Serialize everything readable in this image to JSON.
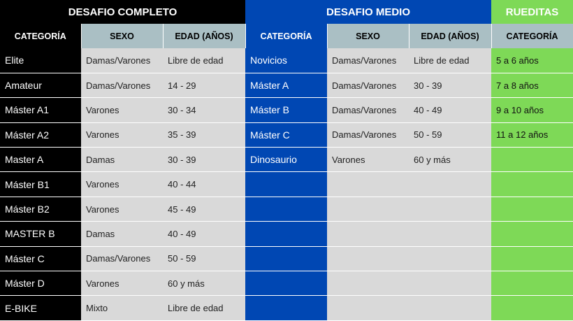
{
  "groups": {
    "completo": "DESAFIO COMPLETO",
    "medio": "DESAFIO MEDIO",
    "rueditas": "RUEDITAS"
  },
  "headers": {
    "categoria": "CATEGORÍA",
    "sexo": "SEXO",
    "edad": "EDAD (AÑOS)"
  },
  "rows": [
    {
      "c_cat": "Elite",
      "c_sexo": "Damas/Varones",
      "c_edad": "Libre de edad",
      "m_cat": "Novicios",
      "m_sexo": "Damas/Varones",
      "m_edad": "Libre de edad",
      "r_cat": "5 a 6 años"
    },
    {
      "c_cat": "Amateur",
      "c_sexo": "Damas/Varones",
      "c_edad": "14 - 29",
      "m_cat": "Máster A",
      "m_sexo": "Damas/Varones",
      "m_edad": "30 - 39",
      "r_cat": "7 a 8 años"
    },
    {
      "c_cat": "Máster A1",
      "c_sexo": "Varones",
      "c_edad": "30 - 34",
      "m_cat": "Máster B",
      "m_sexo": "Damas/Varones",
      "m_edad": "40 - 49",
      "r_cat": "9 a 10 años"
    },
    {
      "c_cat": "Máster A2",
      "c_sexo": "Varones",
      "c_edad": "35 - 39",
      "m_cat": "Máster C",
      "m_sexo": "Damas/Varones",
      "m_edad": "50 - 59",
      "r_cat": "11 a 12 años"
    },
    {
      "c_cat": "Master A",
      "c_sexo": "Damas",
      "c_edad": "30 - 39",
      "m_cat": "Dinosaurio",
      "m_sexo": "Varones",
      "m_edad": "60 y más",
      "r_cat": ""
    },
    {
      "c_cat": "Máster B1",
      "c_sexo": "Varones",
      "c_edad": "40 - 44",
      "m_cat": "",
      "m_sexo": "",
      "m_edad": "",
      "r_cat": ""
    },
    {
      "c_cat": "Máster B2",
      "c_sexo": "Varones",
      "c_edad": "45 - 49",
      "m_cat": "",
      "m_sexo": "",
      "m_edad": "",
      "r_cat": ""
    },
    {
      "c_cat": "MASTER B",
      "c_sexo": "Damas",
      "c_edad": "40 - 49",
      "m_cat": "",
      "m_sexo": "",
      "m_edad": "",
      "r_cat": ""
    },
    {
      "c_cat": "Máster C",
      "c_sexo": "Damas/Varones",
      "c_edad": "50 - 59",
      "m_cat": "",
      "m_sexo": "",
      "m_edad": "",
      "r_cat": ""
    },
    {
      "c_cat": "Máster D",
      "c_sexo": "Varones",
      "c_edad": "60 y más",
      "m_cat": "",
      "m_sexo": "",
      "m_edad": "",
      "r_cat": ""
    },
    {
      "c_cat": "E-BIKE",
      "c_sexo": "Mixto",
      "c_edad": "Libre de edad",
      "m_cat": "",
      "m_sexo": "",
      "m_edad": "",
      "r_cat": ""
    }
  ]
}
